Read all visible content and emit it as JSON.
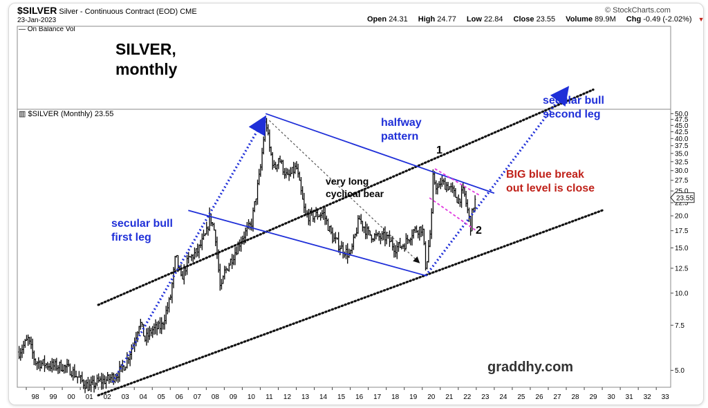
{
  "header": {
    "symbol": "$SILVER",
    "description": "Silver - Continuous Contract (EOD)",
    "exchange": "CME",
    "date": "23-Jan-2023",
    "open_label": "Open",
    "open": "24.31",
    "high_label": "High",
    "high": "24.77",
    "low_label": "Low",
    "low": "22.84",
    "close_label": "Close",
    "close": "23.55",
    "volume_label": "Volume",
    "volume": "89.9M",
    "chg_label": "Chg",
    "chg": "-0.49 (-2.02%)",
    "chg_arrow": "▼",
    "brand": "© StockCharts.com",
    "indicator_label": "— On Balance Vol",
    "price_label": "$SILVER (Monthly) 23.55"
  },
  "annotations": {
    "title_line1": "SILVER,",
    "title_line2": "monthly",
    "first_leg_line1": "secular bull",
    "first_leg_line2": "first leg",
    "halfway_line1": "halfway",
    "halfway_line2": "pattern",
    "bear_line1": "very long",
    "bear_line2": "cyclical bear",
    "second_leg_line1": "secular bull",
    "second_leg_line2": "second leg",
    "breakout_line1": "BIG blue break",
    "breakout_line2": "out level is close",
    "marker_1": "1",
    "marker_2": "2",
    "watermark": "graddhy.com"
  },
  "colors": {
    "annotation_blue": "#1f2fd8",
    "annotation_red": "#c0221a",
    "pink_channel": "#e23ae0",
    "price_bars": "#000000"
  },
  "chart_data": {
    "type": "line",
    "title": "$SILVER (Monthly) 23.55",
    "y_scale": "log",
    "ylim": [
      4.3,
      52
    ],
    "last_value": "23.55",
    "y_ticks": [
      "50.0",
      "47.5",
      "45.0",
      "42.5",
      "40.0",
      "37.5",
      "35.0",
      "32.5",
      "30.0",
      "27.5",
      "25.0",
      "22.5",
      "20.0",
      "17.5",
      "15.0",
      "12.5",
      "10.0",
      "7.5",
      "5.0"
    ],
    "x_ticks": [
      "98",
      "99",
      "00",
      "01",
      "02",
      "03",
      "04",
      "05",
      "06",
      "07",
      "08",
      "09",
      "10",
      "11",
      "12",
      "13",
      "14",
      "15",
      "16",
      "17",
      "18",
      "19",
      "20",
      "21",
      "22",
      "23",
      "24",
      "25",
      "26",
      "27",
      "28",
      "29",
      "30",
      "31",
      "32",
      "33"
    ],
    "series": [
      {
        "x": [
          1997.6,
          1998.1,
          1998.5,
          1999.0,
          1999.5,
          2000.0,
          2000.5,
          2001.0,
          2001.5,
          2001.9,
          2002.5,
          2003.0,
          2003.5,
          2004.0,
          2004.3,
          2004.6,
          2005.0,
          2005.5,
          2006.0,
          2006.3,
          2006.6,
          2007.0,
          2007.5,
          2008.0,
          2008.2,
          2008.5,
          2008.8,
          2009.0,
          2009.5,
          2010.0,
          2010.5,
          2011.0,
          2011.3,
          2011.5,
          2011.8,
          2012.0,
          2012.5,
          2013.0,
          2013.5,
          2014.0,
          2014.5,
          2015.0,
          2015.5,
          2016.0,
          2016.5,
          2017.0,
          2017.5,
          2018.0,
          2018.5,
          2019.0,
          2019.5,
          2020.0,
          2020.2,
          2020.5,
          2020.6,
          2020.9,
          2021.0,
          2021.5,
          2022.0,
          2022.3,
          2022.7,
          2022.8,
          2023.0
        ],
        "y": [
          5.9,
          6.6,
          5.4,
          5.3,
          5.2,
          5.2,
          5.0,
          4.6,
          4.3,
          4.5,
          4.6,
          4.8,
          5.3,
          6.5,
          7.8,
          6.6,
          7.2,
          7.4,
          9.5,
          14.0,
          11.3,
          13.5,
          14.5,
          17.0,
          20.0,
          17.0,
          10.0,
          12.0,
          14.0,
          16.5,
          18.5,
          30.0,
          48.0,
          37.0,
          30.0,
          34.0,
          28.0,
          31.0,
          20.0,
          20.0,
          20.5,
          16.5,
          15.0,
          14.0,
          19.5,
          17.0,
          16.5,
          16.5,
          15.0,
          15.5,
          17.5,
          18.0,
          12.5,
          18.5,
          28.0,
          25.0,
          27.0,
          26.0,
          23.0,
          25.0,
          18.0,
          21.5,
          23.55
        ]
      }
    ],
    "lines": [
      {
        "name": "upper-dotted",
        "style": "dotted-black",
        "x": [
          2002.0,
          2029.5
        ],
        "y": [
          9.0,
          62.0
        ]
      },
      {
        "name": "lower-dotted",
        "style": "dotted-black",
        "x": [
          2002.0,
          2030.0
        ],
        "y": [
          4.0,
          21.0
        ]
      },
      {
        "name": "blue-upper",
        "style": "solid-blue",
        "x": [
          2011.3,
          2024.0
        ],
        "y": [
          50.0,
          24.5
        ]
      },
      {
        "name": "blue-lower",
        "style": "solid-blue",
        "x": [
          2007.0,
          2020.2
        ],
        "y": [
          21.0,
          11.7
        ]
      },
      {
        "name": "first-leg",
        "style": "dotted-blue-arrow",
        "x": [
          2002.8,
          2011.2
        ],
        "y": [
          4.5,
          47.5
        ]
      },
      {
        "name": "second-leg",
        "style": "dotted-blue-arrow",
        "x": [
          2020.2,
          2028.0
        ],
        "y": [
          11.7,
          62.0
        ]
      },
      {
        "name": "bear-trend",
        "style": "dashed-grey-arrow",
        "x": [
          2011.5,
          2019.8
        ],
        "y": [
          47.0,
          13.2
        ]
      },
      {
        "name": "pink-upper",
        "style": "dashed-pink",
        "x": [
          2020.7,
          2023.2
        ],
        "y": [
          30.5,
          24.0
        ]
      },
      {
        "name": "pink-lower",
        "style": "dashed-pink",
        "x": [
          2020.4,
          2023.0
        ],
        "y": [
          23.5,
          17.5
        ]
      }
    ]
  }
}
